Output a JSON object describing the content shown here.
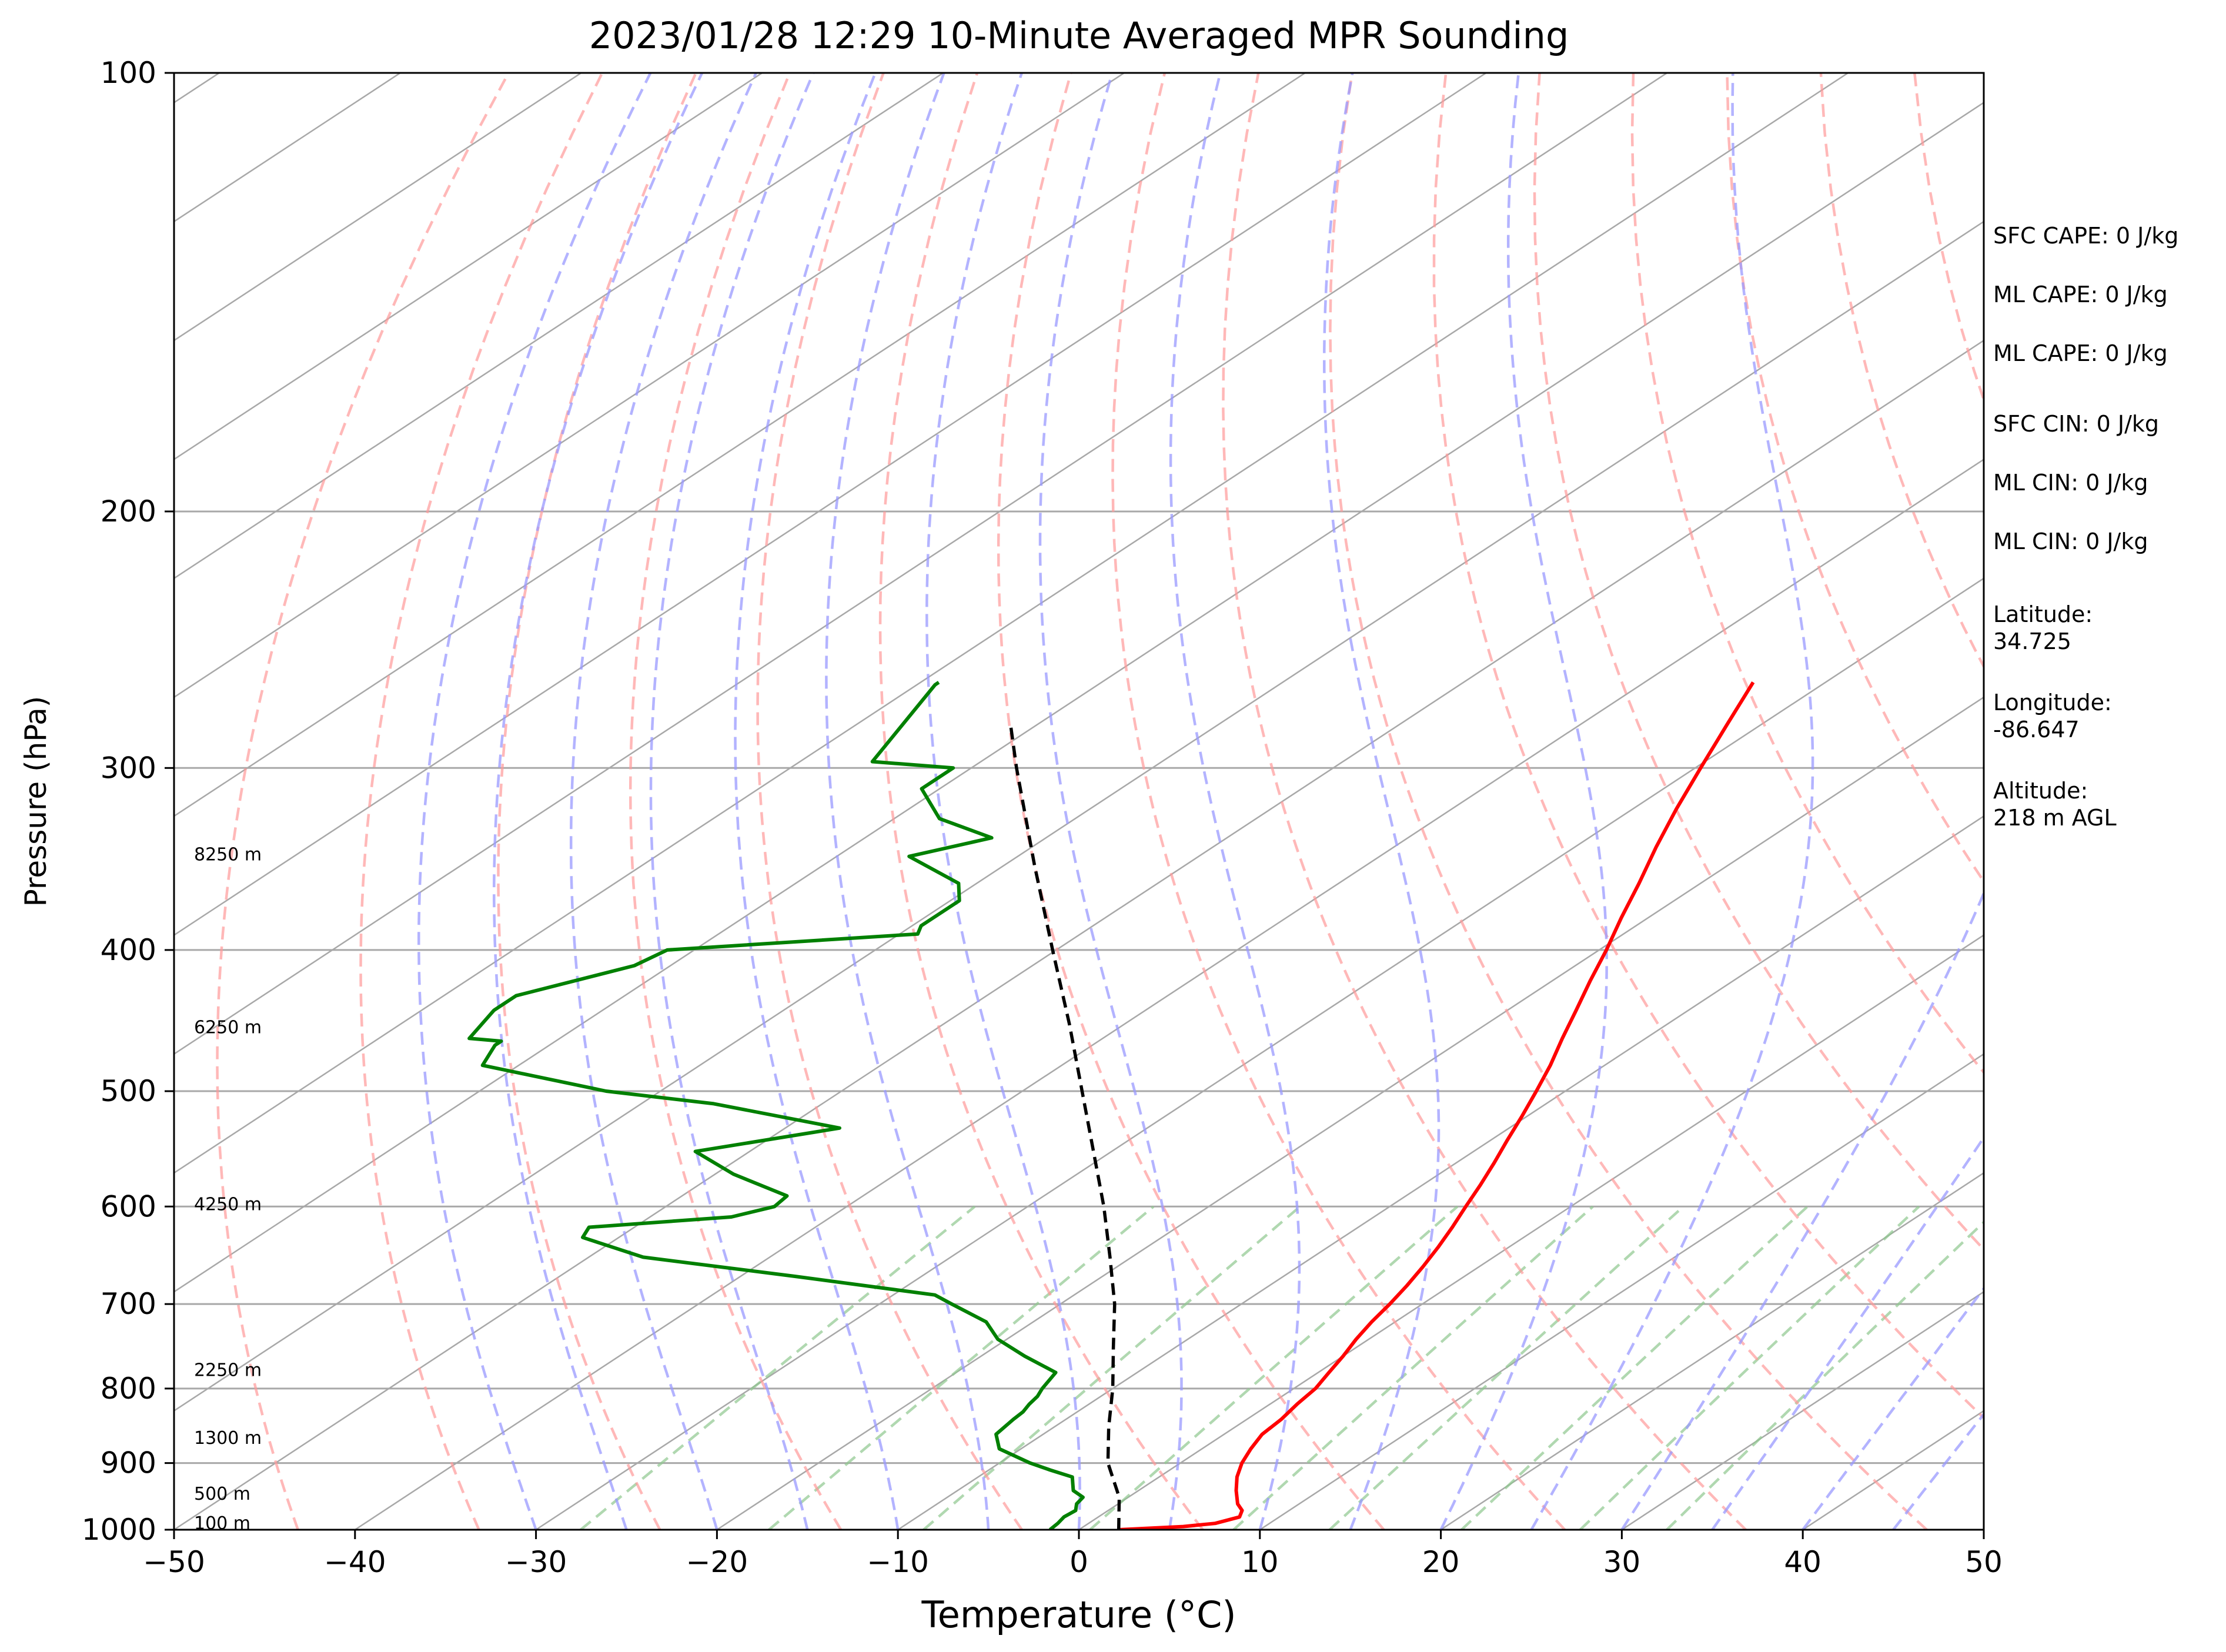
{
  "chart_data": {
    "type": "line",
    "chart_kind": "skew-t",
    "title": "2023/01/28 12:29 10-Minute Averaged MPR Sounding",
    "xlabel": "Temperature (°C)",
    "ylabel": "Pressure (hPa)",
    "xlim": [
      -50,
      50
    ],
    "ylim": [
      1000,
      100
    ],
    "y_scale": "log",
    "x_ticks": [
      -50,
      -40,
      -30,
      -20,
      -10,
      0,
      10,
      20,
      30,
      40,
      50
    ],
    "x_tick_labels": [
      "−50",
      "−40",
      "−30",
      "−20",
      "−10",
      "0",
      "10",
      "20",
      "30",
      "40",
      "50"
    ],
    "y_ticks": [
      100,
      200,
      300,
      400,
      500,
      600,
      700,
      800,
      900,
      1000
    ],
    "y_tick_labels": [
      "100",
      "200",
      "300",
      "400",
      "500",
      "600",
      "700",
      "800",
      "900",
      "1000"
    ],
    "grid": "horizontal at pressure ticks; skewed isotherms",
    "series": [
      {
        "color": "#ff0000",
        "points": [
          [
            1000,
            2.2
          ],
          [
            995,
            5.5
          ],
          [
            990,
            7.0
          ],
          [
            980,
            7.8
          ],
          [
            970,
            7.4
          ],
          [
            960,
            6.6
          ],
          [
            940,
            5.4
          ],
          [
            920,
            4.3
          ],
          [
            900,
            3.4
          ],
          [
            880,
            2.7
          ],
          [
            860,
            2.1
          ],
          [
            840,
            1.9
          ],
          [
            820,
            1.5
          ],
          [
            800,
            1.2
          ],
          [
            780,
            0.6
          ],
          [
            760,
            0.0
          ],
          [
            740,
            -0.7
          ],
          [
            720,
            -1.3
          ],
          [
            700,
            -1.8
          ],
          [
            680,
            -2.4
          ],
          [
            660,
            -3.1
          ],
          [
            640,
            -3.9
          ],
          [
            620,
            -4.8
          ],
          [
            600,
            -5.8
          ],
          [
            580,
            -6.8
          ],
          [
            560,
            -7.9
          ],
          [
            540,
            -9.1
          ],
          [
            520,
            -10.3
          ],
          [
            500,
            -11.6
          ],
          [
            480,
            -13.0
          ],
          [
            460,
            -14.6
          ],
          [
            440,
            -16.2
          ],
          [
            420,
            -17.9
          ],
          [
            400,
            -19.6
          ],
          [
            380,
            -21.5
          ],
          [
            360,
            -23.4
          ],
          [
            340,
            -25.5
          ],
          [
            320,
            -27.6
          ],
          [
            300,
            -29.7
          ],
          [
            280,
            -31.9
          ],
          [
            262,
            -34.0
          ]
        ]
      },
      {
        "color": "#008000",
        "points": [
          [
            1000,
            -1.6
          ],
          [
            990,
            -1.7
          ],
          [
            980,
            -1.9
          ],
          [
            970,
            -1.8
          ],
          [
            960,
            -2.3
          ],
          [
            950,
            -2.5
          ],
          [
            940,
            -3.6
          ],
          [
            930,
            -4.2
          ],
          [
            920,
            -4.8
          ],
          [
            910,
            -6.6
          ],
          [
            900,
            -8.3
          ],
          [
            880,
            -11.2
          ],
          [
            860,
            -12.6
          ],
          [
            840,
            -12.9
          ],
          [
            830,
            -13.0
          ],
          [
            820,
            -13.3
          ],
          [
            810,
            -13.5
          ],
          [
            800,
            -13.9
          ],
          [
            780,
            -14.5
          ],
          [
            760,
            -17.6
          ],
          [
            740,
            -20.5
          ],
          [
            720,
            -22.6
          ],
          [
            700,
            -26.0
          ],
          [
            690,
            -27.7
          ],
          [
            670,
            -37.0
          ],
          [
            650,
            -47.0
          ],
          [
            630,
            -52.0
          ],
          [
            620,
            -52.5
          ],
          [
            610,
            -45.5
          ],
          [
            600,
            -44.0
          ],
          [
            590,
            -44.2
          ],
          [
            570,
            -49.0
          ],
          [
            550,
            -53.0
          ],
          [
            530,
            -47.0
          ],
          [
            510,
            -56.0
          ],
          [
            500,
            -63.0
          ],
          [
            480,
            -72.0
          ],
          [
            465,
            -73.0
          ],
          [
            462,
            -73.0
          ],
          [
            460,
            -75.0
          ],
          [
            440,
            -76.0
          ],
          [
            430,
            -76.0
          ],
          [
            410,
            -72.0
          ],
          [
            400,
            -71.5
          ],
          [
            390,
            -59.0
          ],
          [
            385,
            -59.5
          ],
          [
            370,
            -59.5
          ],
          [
            360,
            -61.0
          ],
          [
            345,
            -66.0
          ],
          [
            335,
            -63.0
          ],
          [
            325,
            -67.5
          ],
          [
            310,
            -71.0
          ],
          [
            300,
            -71.0
          ],
          [
            297,
            -76.0
          ],
          [
            263,
            -79.0
          ],
          [
            262,
            -79.0
          ]
        ]
      },
      {
        "color": "#000000",
        "dashed": true,
        "points": [
          [
            1000,
            2.2
          ],
          [
            950,
            -0.5
          ],
          [
            900,
            -4.0
          ],
          [
            850,
            -7.0
          ],
          [
            800,
            -10.0
          ],
          [
            750,
            -13.4
          ],
          [
            700,
            -17.0
          ],
          [
            650,
            -21.2
          ],
          [
            600,
            -25.8
          ],
          [
            550,
            -31.0
          ],
          [
            500,
            -36.7
          ],
          [
            450,
            -43.0
          ],
          [
            400,
            -50.2
          ],
          [
            350,
            -58.3
          ],
          [
            300,
            -67.5
          ],
          [
            280,
            -71.5
          ]
        ]
      }
    ],
    "height_labels": [
      {
        "label": "100 m",
        "pressure": 990
      },
      {
        "label": "500 m",
        "pressure": 945
      },
      {
        "label": "1300 m",
        "pressure": 865
      },
      {
        "label": "2250 m",
        "pressure": 777
      },
      {
        "label": "4250 m",
        "pressure": 598
      },
      {
        "label": "6250 m",
        "pressure": 452
      },
      {
        "label": "8250 m",
        "pressure": 344
      }
    ]
  },
  "info_panel": {
    "sfc_cape": "SFC CAPE: 0 J/kg",
    "ml_cape_1": "ML CAPE: 0 J/kg",
    "ml_cape_2": "ML CAPE: 0 J/kg",
    "sfc_cin": "SFC CIN: 0 J/kg",
    "ml_cin_1": "ML CIN: 0 J/kg",
    "ml_cin_2": "ML CIN: 0 J/kg",
    "latitude": "Latitude:\n34.725",
    "longitude": "Longitude:\n-86.647",
    "altitude": "Altitude:\n218 m AGL"
  },
  "colors": {
    "temperature": "#ff0000",
    "dewpoint": "#008000",
    "parcel": "#000000",
    "isotherm": "#a8a8a8",
    "dry_adiabat": "#ff9a9a",
    "moist_adiabat": "#9a9aff",
    "mixing_ratio": "#8fc88f"
  }
}
